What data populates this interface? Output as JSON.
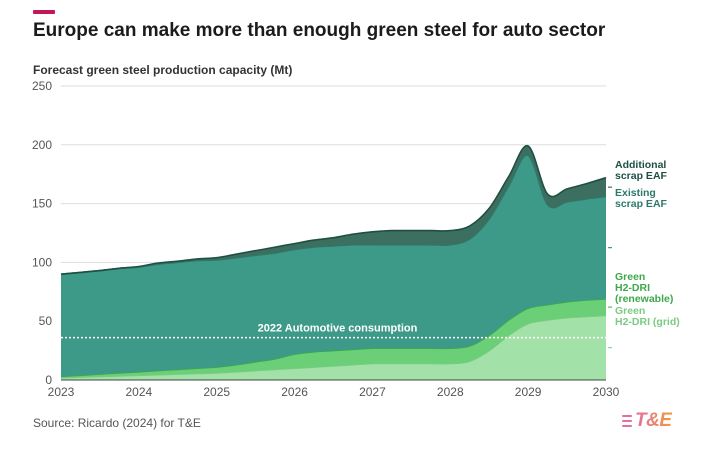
{
  "brand": {
    "accent_color": "#c2185b",
    "logo_text": "T&E",
    "logo_gradient": [
      "#e56ca4",
      "#f29a3b"
    ]
  },
  "title": "Europe can make more than enough green steel for auto sector",
  "source": "Source: Ricardo (2024) for T&E",
  "chart_data": {
    "type": "area",
    "stacked": true,
    "subtitle": "Forecast green steel production capacity (Mt)",
    "x": [
      2023,
      2023.25,
      2023.5,
      2023.75,
      2024,
      2024.25,
      2024.5,
      2024.75,
      2025,
      2025.25,
      2025.5,
      2025.75,
      2026,
      2026.25,
      2026.5,
      2026.75,
      2027,
      2027.25,
      2027.5,
      2027.75,
      2028,
      2028.25,
      2028.5,
      2028.75,
      2029,
      2029.25,
      2029.5,
      2029.75,
      2030
    ],
    "xticks": [
      "2023",
      "2024",
      "2025",
      "2026",
      "2027",
      "2028",
      "2029",
      "2030"
    ],
    "xlim": [
      2023,
      2030
    ],
    "ylim": [
      0,
      250
    ],
    "yticks": [
      "0",
      "50",
      "100",
      "150",
      "200",
      "250"
    ],
    "grid": true,
    "series": [
      {
        "name": "Green H2-DRI (grid)",
        "color": "#a2e1a8",
        "label_color": "#7bcb83",
        "values": [
          2,
          2.5,
          3,
          3.5,
          4,
          4.5,
          5,
          5.5,
          6,
          7,
          8,
          9,
          10,
          11,
          12,
          13,
          14,
          14,
          14,
          14,
          14,
          16,
          25,
          38,
          48,
          51,
          53,
          54,
          55
        ]
      },
      {
        "name": "Green H2-DRI (renewable)",
        "color": "#6bcf77",
        "label_color": "#3ea84a",
        "values": [
          1,
          1.5,
          2,
          2.5,
          3,
          3.5,
          4,
          4.5,
          5,
          6,
          7.5,
          9,
          12,
          13,
          13,
          13,
          13,
          13,
          13,
          13,
          13,
          13,
          13,
          13,
          13,
          13,
          13.5,
          14,
          14
        ]
      },
      {
        "name": "Existing scrap EAF",
        "color": "#3d9a88",
        "label_color": "#2c7a6a",
        "values": [
          87,
          87.5,
          88,
          89,
          89,
          90.5,
          91,
          91.5,
          91,
          91,
          90.5,
          90,
          89,
          89,
          89,
          89,
          88,
          88,
          88,
          88,
          88,
          91,
          99,
          114,
          130,
          85,
          85,
          86,
          87
        ]
      },
      {
        "name": "Additional scrap EAF",
        "color": "#3d6f60",
        "label_color": "#1f4f43",
        "values": [
          0,
          0,
          0,
          0,
          0.5,
          1,
          1,
          1.5,
          2,
          3,
          4,
          5,
          5,
          6,
          7,
          9,
          11,
          12,
          12,
          12,
          12,
          11,
          9,
          8,
          8,
          9,
          11,
          13,
          16
        ]
      }
    ],
    "reference_line": {
      "label": "2022 Automotive consumption",
      "value": 36
    },
    "legend": [
      {
        "lines": [
          "Additional",
          "scrap EAF"
        ],
        "series": 3
      },
      {
        "lines": [
          "Existing",
          "scrap EAF"
        ],
        "series": 2
      },
      {
        "lines": [
          "Green",
          "H2-DRI",
          "(renewable)"
        ],
        "series": 1
      },
      {
        "lines": [
          "Green",
          "H2-DRI (grid)"
        ],
        "series": 0
      }
    ],
    "legend_position": "right"
  }
}
